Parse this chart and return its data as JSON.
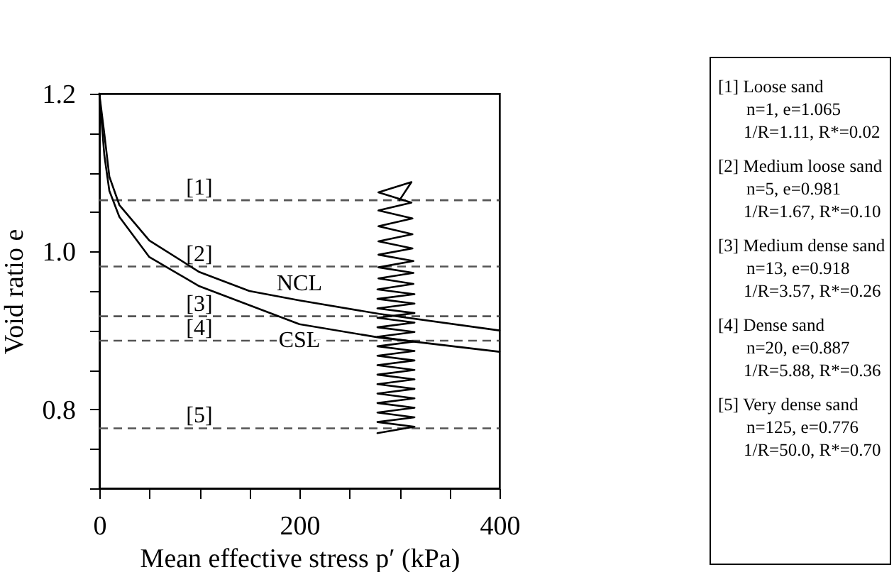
{
  "chart_data": {
    "type": "line",
    "xlabel": "Mean effective stress  p′ (kPa)",
    "ylabel": "Void ratio e",
    "xlim": [
      0,
      400
    ],
    "ylim": [
      0.7,
      1.2
    ],
    "xticks": [
      0,
      {
        "value": 50,
        "label": null
      },
      {
        "value": 100,
        "label": null
      },
      {
        "value": 150,
        "label": null
      },
      200,
      {
        "value": 250,
        "label": null
      },
      {
        "value": 300,
        "label": null
      },
      {
        "value": 350,
        "label": null
      },
      400
    ],
    "yticks": [
      {
        "value": 0.7,
        "label": null
      },
      {
        "value": 0.75,
        "label": null
      },
      0.8,
      {
        "value": 0.85,
        "label": null
      },
      {
        "value": 0.9,
        "label": null
      },
      {
        "value": 0.95,
        "label": null
      },
      {
        "value": 1,
        "label": "1.0"
      },
      {
        "value": 1.05,
        "label": null
      },
      {
        "value": 1.1,
        "label": null
      },
      {
        "value": 1.15,
        "label": null
      },
      1.2
    ],
    "grid": false,
    "line_style": "solid",
    "marker": "none",
    "series": [
      {
        "name": "NCL",
        "color": "#000000",
        "x": [
          0,
          5,
          10,
          20,
          50,
          100,
          150,
          200,
          280,
          400
        ],
        "values": [
          1.2,
          1.149,
          1.095,
          1.059,
          1.014,
          0.974,
          0.95,
          0.938,
          0.921,
          0.9
        ]
      },
      {
        "name": "CSL",
        "color": "#000000",
        "x": [
          0,
          5,
          10,
          20,
          50,
          100,
          150,
          200,
          280,
          400
        ],
        "values": [
          1.2,
          1.122,
          1.077,
          1.044,
          0.993,
          0.956,
          0.932,
          0.908,
          0.891,
          0.873
        ]
      },
      {
        "color": "#000000",
        "x": [
          300,
          312,
          279,
          312,
          279,
          313,
          279,
          313,
          279,
          313,
          279,
          314,
          279,
          314,
          279,
          314,
          278,
          315,
          278,
          315,
          278,
          315,
          278,
          315,
          278,
          315,
          278,
          315,
          278,
          315,
          278,
          315,
          278,
          315,
          278,
          315,
          278,
          315,
          278,
          315,
          278,
          315,
          278,
          315,
          278,
          315,
          278
        ],
        "values": [
          1.065,
          1.088,
          1.075,
          1.062,
          1.052,
          1.042,
          1.032,
          1.022,
          1.013,
          1.004,
          0.996,
          0.988,
          0.98,
          0.973,
          0.966,
          0.959,
          0.952,
          0.946,
          0.94,
          0.934,
          0.928,
          0.922,
          0.916,
          0.91,
          0.904,
          0.898,
          0.892,
          0.886,
          0.88,
          0.874,
          0.868,
          0.862,
          0.856,
          0.85,
          0.844,
          0.838,
          0.832,
          0.826,
          0.82,
          0.814,
          0.808,
          0.802,
          0.796,
          0.79,
          0.784,
          0.778,
          0.77
        ]
      }
    ],
    "ref_lines": [
      {
        "axis": "y",
        "value": 1.065,
        "color": "#555555",
        "line_style": "dashed"
      },
      {
        "axis": "y",
        "value": 0.981,
        "color": "#555555",
        "line_style": "dashed"
      },
      {
        "axis": "y",
        "value": 0.918,
        "color": "#555555",
        "line_style": "dashed"
      },
      {
        "axis": "y",
        "value": 0.887,
        "color": "#555555",
        "line_style": "dashed"
      },
      {
        "axis": "y",
        "value": 0.776,
        "color": "#555555",
        "line_style": "dashed"
      }
    ],
    "annotations": [
      {
        "text": "[1]",
        "y": 1.065
      },
      {
        "text": "[2]",
        "y": 0.981
      },
      {
        "text": "[3]",
        "y": 0.918
      },
      {
        "text": "[4]",
        "y": 0.887
      },
      {
        "text": "[5]",
        "y": 0.776
      },
      "[1]  Loose sand",
      "n=1, e=1.065",
      "1/R=1.11, R*=0.02",
      "[2]  Medium loose sand",
      "n=5, e=0.981",
      "1/R=1.67, R*=0.10",
      "[3]  Medium dense sand",
      "n=13, e=0.918",
      "1/R=3.57, R*=0.26",
      "[4]  Dense sand",
      "n=20, e=0.887",
      "1/R=5.88, R*=0.36",
      "[5]  Very dense sand",
      "n=125, e=0.776",
      "1/R=50.0, R*=0.70"
    ]
  }
}
